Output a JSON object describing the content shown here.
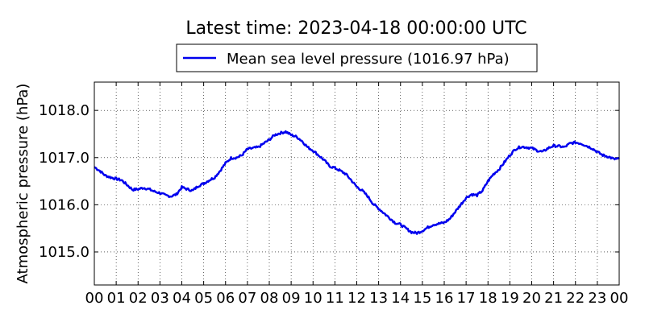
{
  "chart_data": {
    "type": "line",
    "title": "Latest time: 2023-04-18 00:00:00 UTC",
    "xlabel": "",
    "ylabel": "Atmospheric pressure (hPa)",
    "xlim": [
      0,
      24
    ],
    "ylim": [
      1014.3,
      1018.6
    ],
    "grid": true,
    "legend_position": "top-center",
    "xticks": [
      "00",
      "01",
      "02",
      "03",
      "04",
      "05",
      "06",
      "07",
      "08",
      "09",
      "10",
      "11",
      "12",
      "13",
      "14",
      "15",
      "16",
      "17",
      "18",
      "19",
      "20",
      "21",
      "22",
      "23",
      "00"
    ],
    "yticks": [
      {
        "value": 1015.0,
        "label": "1015.0"
      },
      {
        "value": 1016.0,
        "label": "1016.0"
      },
      {
        "value": 1017.0,
        "label": "1017.0"
      },
      {
        "value": 1018.0,
        "label": "1018.0"
      }
    ],
    "series": [
      {
        "name": "Mean sea level pressure (1016.97 hPa)",
        "color": "#0000ee",
        "x": [
          0,
          0.25,
          0.5,
          0.75,
          1,
          1.25,
          1.5,
          1.75,
          2,
          2.25,
          2.5,
          2.75,
          3,
          3.25,
          3.5,
          3.75,
          4,
          4.25,
          4.5,
          4.75,
          5,
          5.25,
          5.5,
          5.75,
          6,
          6.25,
          6.5,
          6.75,
          7,
          7.25,
          7.5,
          7.75,
          8,
          8.25,
          8.5,
          8.75,
          9,
          9.25,
          9.5,
          9.75,
          10,
          10.25,
          10.5,
          10.75,
          11,
          11.25,
          11.5,
          11.75,
          12,
          12.25,
          12.5,
          12.75,
          13,
          13.25,
          13.5,
          13.75,
          14,
          14.25,
          14.5,
          14.75,
          15,
          15.25,
          15.5,
          15.75,
          16,
          16.25,
          16.5,
          16.75,
          17,
          17.25,
          17.5,
          17.75,
          18,
          18.25,
          18.5,
          18.75,
          19,
          19.25,
          19.5,
          19.75,
          20,
          20.25,
          20.5,
          20.75,
          21,
          21.25,
          21.5,
          21.75,
          22,
          22.25,
          22.5,
          22.75,
          23,
          23.25,
          23.5,
          23.75,
          24
        ],
        "values": [
          1016.8,
          1016.72,
          1016.62,
          1016.58,
          1016.55,
          1016.52,
          1016.42,
          1016.32,
          1016.33,
          1016.36,
          1016.33,
          1016.28,
          1016.25,
          1016.2,
          1016.18,
          1016.22,
          1016.37,
          1016.33,
          1016.3,
          1016.4,
          1016.45,
          1016.52,
          1016.58,
          1016.72,
          1016.88,
          1016.99,
          1017.0,
          1017.05,
          1017.18,
          1017.2,
          1017.22,
          1017.3,
          1017.38,
          1017.48,
          1017.52,
          1017.55,
          1017.48,
          1017.44,
          1017.35,
          1017.22,
          1017.15,
          1017.05,
          1016.95,
          1016.82,
          1016.78,
          1016.72,
          1016.65,
          1016.52,
          1016.38,
          1016.3,
          1016.18,
          1016.02,
          1015.92,
          1015.82,
          1015.72,
          1015.62,
          1015.58,
          1015.5,
          1015.42,
          1015.4,
          1015.45,
          1015.52,
          1015.58,
          1015.6,
          1015.62,
          1015.7,
          1015.85,
          1016.0,
          1016.15,
          1016.22,
          1016.2,
          1016.3,
          1016.5,
          1016.65,
          1016.75,
          1016.9,
          1017.05,
          1017.18,
          1017.23,
          1017.22,
          1017.2,
          1017.15,
          1017.12,
          1017.2,
          1017.25,
          1017.24,
          1017.22,
          1017.3,
          1017.32,
          1017.3,
          1017.25,
          1017.2,
          1017.12,
          1017.05,
          1017.02,
          1016.97,
          1016.97
        ]
      }
    ]
  }
}
